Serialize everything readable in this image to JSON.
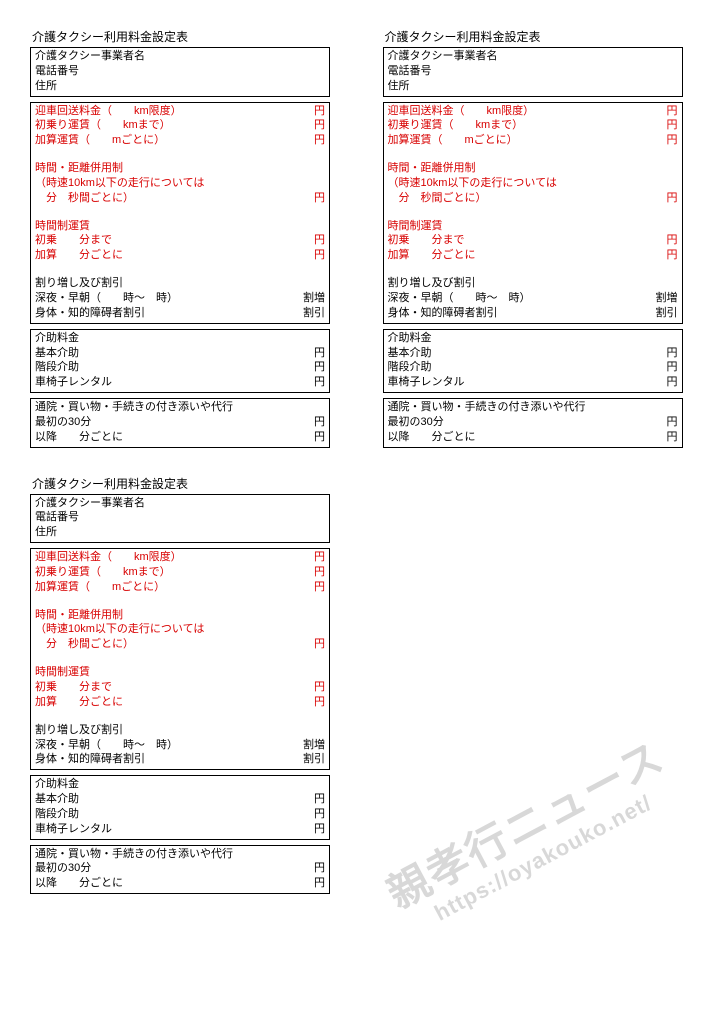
{
  "yen": "円",
  "wariMashi": "割増",
  "wariBiki": "割引",
  "form": {
    "title": "介護タクシー利用料金設定表",
    "header": {
      "name": "介護タクシー事業者名",
      "tel": "電話番号",
      "addr": "住所"
    },
    "fare": {
      "geisha": "迎車回送料金（　　km限度）",
      "hatsunori": "初乗り運賃（　　kmまで）",
      "kasan": "加算運賃（　　mごとに）",
      "jikanKyori": "時間・距離併用制",
      "jikanKyoriSub1": "（時速10km以下の走行については",
      "jikanKyoriSub2": "　分　秒間ごとに）",
      "jikansei": "時間制運賃",
      "hatsunoriFun": "初乗　　分まで",
      "kasanFun": "加算　　分ごとに",
      "wariTitle": "割り増し及び割引",
      "shinya": "深夜・早朝（　　時～　時）",
      "shintai": "身体・知的障碍者割引"
    },
    "kaijo": {
      "title": "介助料金",
      "kihon": "基本介助",
      "kaidan": "階段介助",
      "kurumaisu": "車椅子レンタル"
    },
    "tsuuin": {
      "title": "通院・買い物・手続きの付き添いや代行",
      "first30": "最初の30分",
      "ikou": "以降　　分ごとに"
    }
  },
  "watermark": {
    "line1": "親孝行ニュース",
    "line2": "https://oyakouko.net/"
  }
}
